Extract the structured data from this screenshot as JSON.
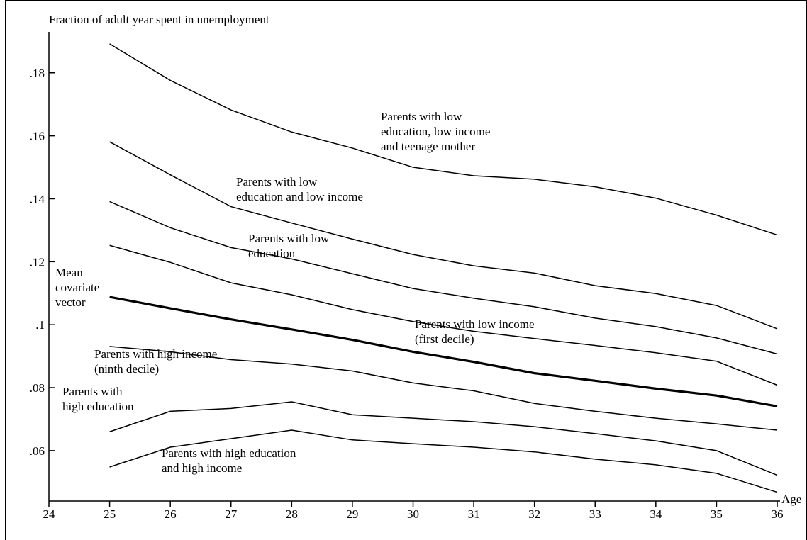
{
  "chart_data": {
    "type": "line",
    "y_title": "Fraction of adult year spent in unemployment",
    "x_title": "Age",
    "xlim": [
      24,
      36
    ],
    "xticks": [
      24,
      25,
      26,
      27,
      28,
      29,
      30,
      31,
      32,
      33,
      34,
      35,
      36
    ],
    "ylim": [
      0.044,
      0.193
    ],
    "yticks": [
      {
        "value": 0.06,
        "label": ".06"
      },
      {
        "value": 0.08,
        "label": ".08"
      },
      {
        "value": 0.1,
        "label": ".1"
      },
      {
        "value": 0.12,
        "label": ".12"
      },
      {
        "value": 0.14,
        "label": ".14"
      },
      {
        "value": 0.16,
        "label": ".16"
      },
      {
        "value": 0.18,
        "label": ".18"
      }
    ],
    "x": [
      25,
      26,
      27,
      28,
      29,
      30,
      31,
      32,
      33,
      34,
      35,
      36
    ],
    "series": [
      {
        "label": [
          "Parents with low",
          "education, low income",
          "and teenage mother"
        ],
        "color": "#000000",
        "values": [
          0.1892,
          0.1776,
          0.1682,
          0.1612,
          0.1561,
          0.15,
          0.1473,
          0.1462,
          0.1438,
          0.1402,
          0.1348,
          0.1285
        ]
      },
      {
        "label": [
          "Parents with low",
          "education and low income"
        ],
        "color": "#000000",
        "values": [
          0.1581,
          0.1476,
          0.1375,
          0.1323,
          0.1272,
          0.1223,
          0.1187,
          0.1164,
          0.1124,
          0.1099,
          0.1061,
          0.0987
        ]
      },
      {
        "label": [
          "Parents with low",
          "education"
        ],
        "color": "#000000",
        "values": [
          0.1391,
          0.1308,
          0.1245,
          0.1209,
          0.1162,
          0.1115,
          0.1084,
          0.1057,
          0.1021,
          0.0994,
          0.0958,
          0.0907
        ]
      },
      {
        "label": [
          "Parents with low income",
          "(first decile)"
        ],
        "color": "#000000",
        "values": [
          0.1252,
          0.1198,
          0.1133,
          0.1095,
          0.1048,
          0.101,
          0.0979,
          0.0956,
          0.0934,
          0.0911,
          0.0884,
          0.0808
        ]
      },
      {
        "label": [
          "Mean",
          "covariate",
          "vector"
        ],
        "color": "#000000",
        "bold": true,
        "values": [
          0.1088,
          0.1052,
          0.1017,
          0.0985,
          0.0952,
          0.0914,
          0.0882,
          0.0846,
          0.0822,
          0.0797,
          0.0775,
          0.0741
        ]
      },
      {
        "label": [
          "Parents with high income",
          "(ninth decile)"
        ],
        "color": "#000000",
        "values": [
          0.0931,
          0.0914,
          0.0889,
          0.0875,
          0.0853,
          0.0815,
          0.079,
          0.075,
          0.0725,
          0.0703,
          0.0685,
          0.0665
        ]
      },
      {
        "label": [
          "Parents with",
          "high education"
        ],
        "color": "#000000",
        "values": [
          0.066,
          0.0725,
          0.0734,
          0.0755,
          0.0714,
          0.0703,
          0.0692,
          0.0676,
          0.0654,
          0.0631,
          0.06,
          0.0522
        ]
      },
      {
        "label": [
          "Parents with high education",
          "and high income"
        ],
        "color": "#000000",
        "values": [
          0.0548,
          0.0611,
          0.0638,
          0.0665,
          0.0634,
          0.0622,
          0.0611,
          0.0596,
          0.0573,
          0.0555,
          0.0528,
          0.0468
        ]
      }
    ]
  }
}
